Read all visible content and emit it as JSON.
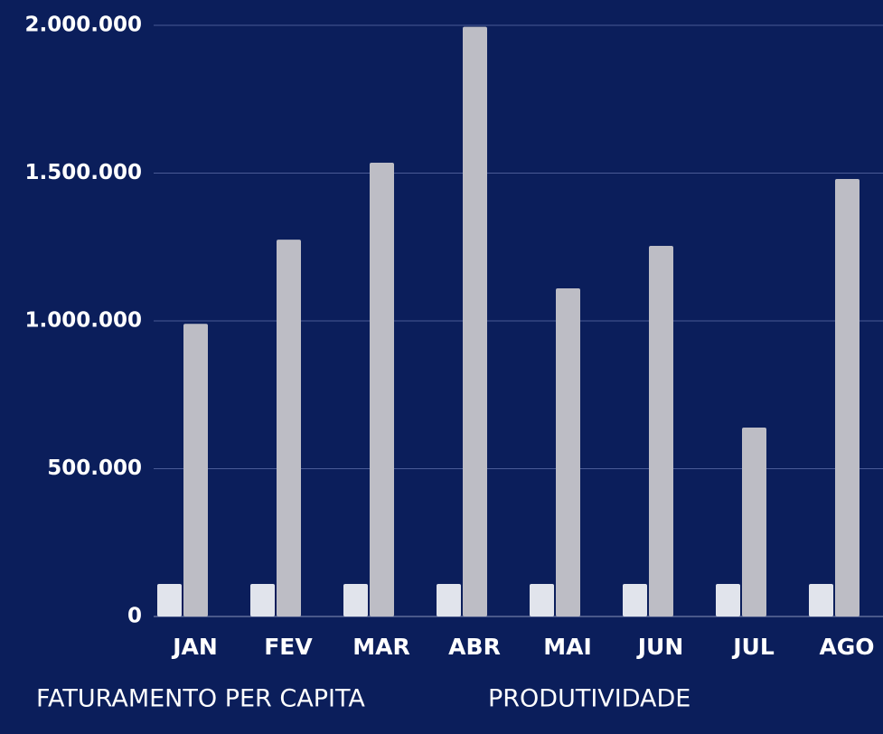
{
  "chart_data": {
    "type": "bar",
    "categories": [
      "JAN",
      "FEV",
      "MAR",
      "ABR",
      "MAI",
      "JUN",
      "JUL",
      "AGO"
    ],
    "series": [
      {
        "name": "FATURAMENTO PER CAPITA",
        "color": "#e1e4ec",
        "values": [
          110000,
          110000,
          110000,
          110000,
          110000,
          110000,
          110000,
          110000
        ]
      },
      {
        "name": "PRODUTIVIDADE",
        "color": "#bdbdc5",
        "values": [
          990000,
          1275000,
          1535000,
          1995000,
          1110000,
          1254000,
          639000,
          1480000
        ]
      }
    ],
    "ylim": [
      0,
      2000000
    ],
    "yticks": [
      0,
      {
        "value": 500000,
        "label": "500.000"
      },
      {
        "value": 1000000,
        "label": "1.000.000"
      },
      {
        "value": 1500000,
        "label": "1.500.000"
      },
      {
        "value": 2000000,
        "label": "2.000.000"
      }
    ],
    "grid": true
  }
}
